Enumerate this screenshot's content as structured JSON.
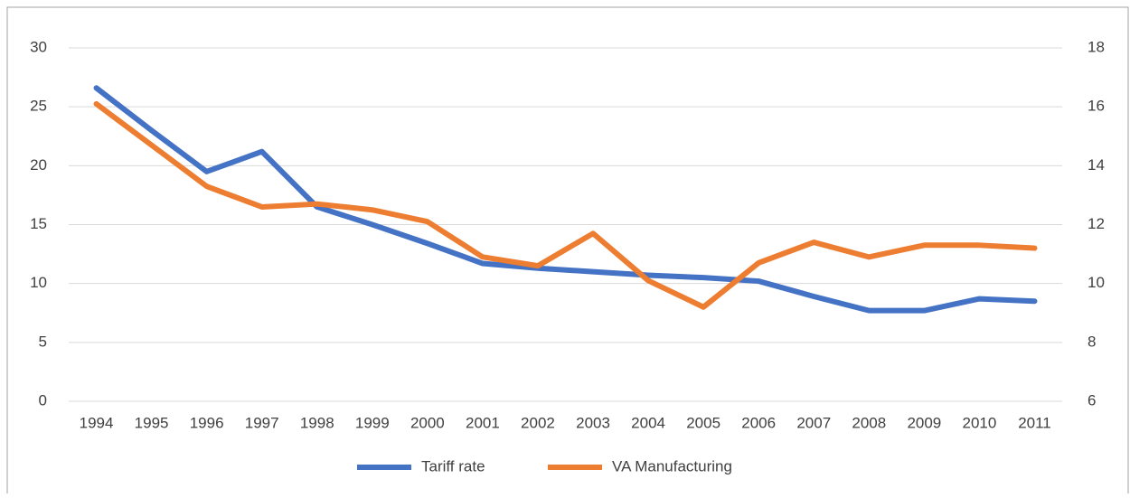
{
  "chart_data": {
    "type": "line",
    "categories": [
      "1994",
      "1995",
      "1996",
      "1997",
      "1998",
      "1999",
      "2000",
      "2001",
      "2002",
      "2003",
      "2004",
      "2005",
      "2006",
      "2007",
      "2008",
      "2009",
      "2010",
      "2011"
    ],
    "series": [
      {
        "name": "Tariff rate",
        "color": "#4472c4",
        "values": [
          26.6,
          23.0,
          19.5,
          21.2,
          16.5,
          15.0,
          13.4,
          11.7,
          11.3,
          11.0,
          10.7,
          10.5,
          10.2,
          8.9,
          7.7,
          7.7,
          8.7,
          8.5
        ]
      },
      {
        "name": "VA Manufacturing",
        "color": "#ed7d31",
        "axis": "y2",
        "values": [
          16.1,
          14.7,
          13.3,
          12.6,
          12.7,
          12.5,
          12.1,
          10.9,
          10.6,
          11.7,
          10.1,
          9.2,
          10.7,
          11.4,
          10.9,
          11.3,
          11.3,
          11.2
        ]
      }
    ],
    "ylim": [
      0,
      30
    ],
    "yticks": [
      0,
      5,
      10,
      15,
      20,
      25,
      30
    ],
    "y2lim": [
      6,
      18
    ],
    "y2ticks": [
      6,
      8,
      10,
      12,
      14,
      16,
      18
    ],
    "grid": true,
    "legend": "bottom"
  }
}
